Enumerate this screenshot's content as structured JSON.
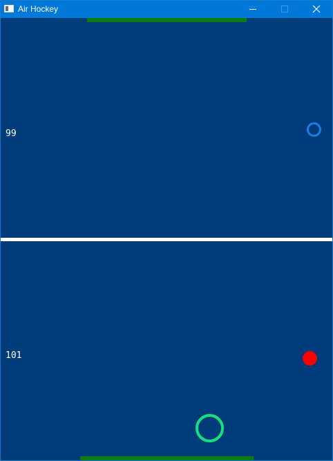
{
  "window": {
    "title": "Air Hockey",
    "icon": "application-window-icon",
    "controls": {
      "minimize": "minimize-icon",
      "maximize": "maximize-icon",
      "close": "close-icon"
    }
  },
  "game": {
    "top_score": "99",
    "bottom_score": "101",
    "colors": {
      "background": "#003c7a",
      "goal": "#0c7c12",
      "center_line": "#ffffff",
      "top_mallet": "#1a7ee8",
      "bottom_mallet": "#12e27c",
      "puck": "#ff0000"
    }
  }
}
